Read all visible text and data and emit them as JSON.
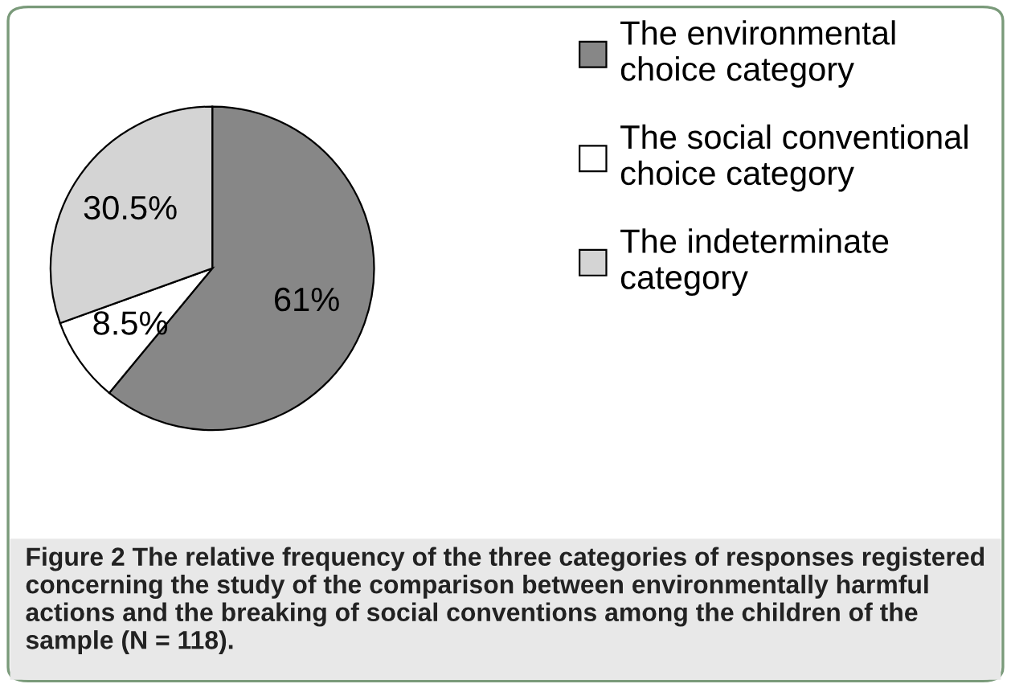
{
  "chart_data": {
    "type": "pie",
    "categories": [
      "The environmental\nchoice category",
      "The social conventional\nchoice category",
      "The indeterminate\ncategory"
    ],
    "values": [
      61,
      8.5,
      30.5
    ],
    "colors": [
      "#878787",
      "#ffffff",
      "#d4d4d4"
    ],
    "value_labels": [
      "61%",
      "8.5%",
      "30.5%"
    ],
    "legend": "right",
    "annotations": [
      "Figure 2 The relative frequency of the three categories of responses registered concerning the study of the comparison between environmentally harmful actions and the breaking of social conventions among the children of the sample (N = 118)."
    ]
  }
}
